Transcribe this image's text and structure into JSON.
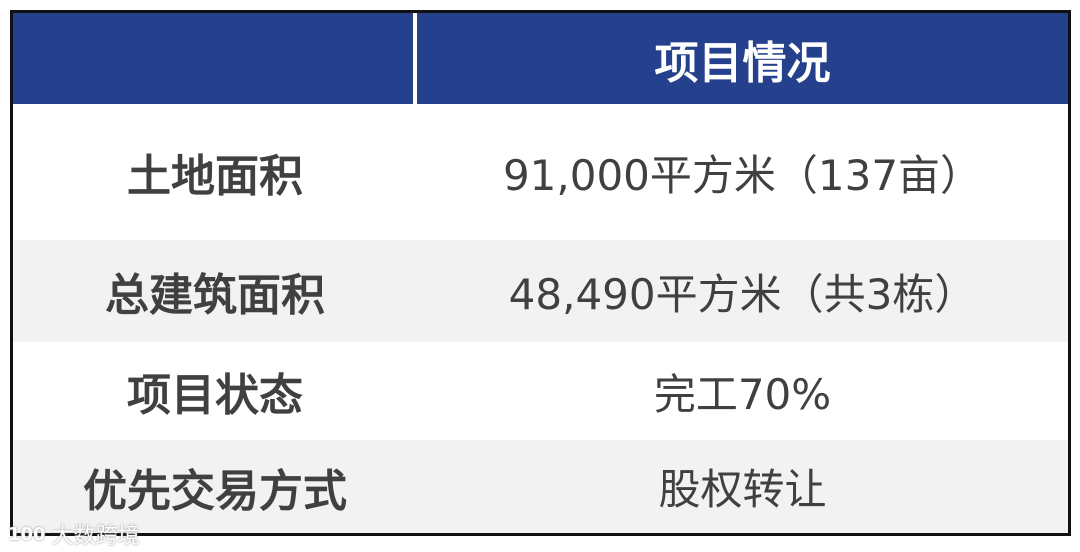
{
  "table": {
    "header": {
      "label": "",
      "value": "项目情况"
    },
    "header_color": "#25408c",
    "rows": [
      {
        "label": "土地面积",
        "value": "91,000平方米（137亩）"
      },
      {
        "label": "总建筑面积",
        "value": "48,490平方米（共3栋）"
      },
      {
        "label": "项目状态",
        "value": "完工70%"
      },
      {
        "label": "优先交易方式",
        "value": "股权转让"
      }
    ]
  },
  "watermark": {
    "logo": "100",
    "text": "大数跨境"
  }
}
